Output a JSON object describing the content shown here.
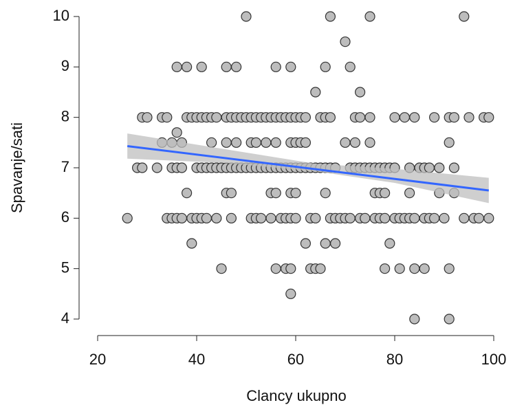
{
  "chart_data": {
    "type": "scatter",
    "x_label": "Clancy ukupno",
    "y_label": "Spavanje/sati",
    "xlim": [
      20,
      100
    ],
    "ylim": [
      4,
      10
    ],
    "xticks": [
      20,
      40,
      60,
      80,
      100
    ],
    "yticks": [
      4,
      5,
      6,
      7,
      8,
      9,
      10
    ],
    "point_color": "#bdbdbd",
    "line_color": "#3366ff",
    "band_color": "#bfbfbf",
    "x": [
      50,
      67,
      75,
      94,
      70,
      36,
      38,
      41,
      46,
      48,
      56,
      59,
      66,
      71,
      64,
      73,
      29,
      30,
      33,
      34,
      38,
      39,
      40,
      41,
      42,
      43,
      44,
      46,
      47,
      48,
      49,
      50,
      51,
      52,
      53,
      54,
      55,
      56,
      57,
      58,
      59,
      60,
      61,
      62,
      65,
      66,
      67,
      72,
      73,
      75,
      80,
      82,
      84,
      88,
      91,
      92,
      95,
      98,
      99,
      36,
      33,
      35,
      37,
      43,
      46,
      48,
      51,
      52,
      54,
      56,
      59,
      60,
      61,
      62,
      70,
      72,
      75,
      91,
      28,
      29,
      32,
      35,
      36,
      37,
      40,
      41,
      42,
      43,
      44,
      45,
      46,
      47,
      48,
      49,
      50,
      51,
      52,
      53,
      54,
      55,
      56,
      57,
      58,
      59,
      60,
      61,
      62,
      63,
      64,
      65,
      66,
      67,
      68,
      71,
      72,
      73,
      74,
      75,
      76,
      77,
      78,
      79,
      80,
      83,
      85,
      86,
      87,
      89,
      92,
      38,
      46,
      47,
      55,
      56,
      59,
      60,
      66,
      76,
      77,
      78,
      83,
      89,
      92,
      26,
      34,
      35,
      36,
      37,
      39,
      40,
      41,
      42,
      44,
      47,
      51,
      52,
      53,
      55,
      57,
      58,
      59,
      60,
      63,
      64,
      67,
      68,
      69,
      70,
      71,
      73,
      74,
      76,
      77,
      78,
      80,
      81,
      82,
      83,
      84,
      86,
      87,
      88,
      90,
      94,
      96,
      97,
      99,
      39,
      62,
      66,
      68,
      79,
      45,
      56,
      58,
      59,
      63,
      64,
      65,
      78,
      81,
      84,
      86,
      91,
      59,
      84,
      91
    ],
    "y": [
      10,
      10,
      10,
      10,
      9.5,
      9,
      9,
      9,
      9,
      9,
      9,
      9,
      9,
      9,
      8.5,
      8.5,
      8,
      8,
      8,
      8,
      8,
      8,
      8,
      8,
      8,
      8,
      8,
      8,
      8,
      8,
      8,
      8,
      8,
      8,
      8,
      8,
      8,
      8,
      8,
      8,
      8,
      8,
      8,
      8,
      8,
      8,
      8,
      8,
      8,
      8,
      8,
      8,
      8,
      8,
      8,
      8,
      8,
      8,
      8,
      7.7,
      7.5,
      7.5,
      7.5,
      7.5,
      7.5,
      7.5,
      7.5,
      7.5,
      7.5,
      7.5,
      7.5,
      7.5,
      7.5,
      7.5,
      7.5,
      7.5,
      7.5,
      7.5,
      7,
      7,
      7,
      7,
      7,
      7,
      7,
      7,
      7,
      7,
      7,
      7,
      7,
      7,
      7,
      7,
      7,
      7,
      7,
      7,
      7,
      7,
      7,
      7,
      7,
      7,
      7,
      7,
      7,
      7,
      7,
      7,
      7,
      7,
      7,
      7,
      7,
      7,
      7,
      7,
      7,
      7,
      7,
      7,
      7,
      7,
      7,
      7,
      7,
      7,
      7,
      6.5,
      6.5,
      6.5,
      6.5,
      6.5,
      6.5,
      6.5,
      6.5,
      6.5,
      6.5,
      6.5,
      6.5,
      6.5,
      6.5,
      6,
      6,
      6,
      6,
      6,
      6,
      6,
      6,
      6,
      6,
      6,
      6,
      6,
      6,
      6,
      6,
      6,
      6,
      6,
      6,
      6,
      6,
      6,
      6,
      6,
      6,
      6,
      6,
      6,
      6,
      6,
      6,
      6,
      6,
      6,
      6,
      6,
      6,
      6,
      6,
      6,
      6,
      6,
      6,
      5.5,
      5.5,
      5.5,
      5.5,
      5.5,
      5,
      5,
      5,
      5,
      5,
      5,
      5,
      5,
      5,
      5,
      5,
      5,
      4.5,
      4,
      4
    ],
    "fit": {
      "x": [
        26,
        99
      ],
      "y": [
        7.43,
        6.55
      ]
    },
    "band": {
      "x": [
        26,
        45,
        64,
        80,
        99
      ],
      "lower": [
        7.18,
        7.1,
        6.93,
        6.7,
        6.3
      ],
      "upper": [
        7.68,
        7.38,
        7.08,
        6.98,
        6.8
      ]
    }
  }
}
